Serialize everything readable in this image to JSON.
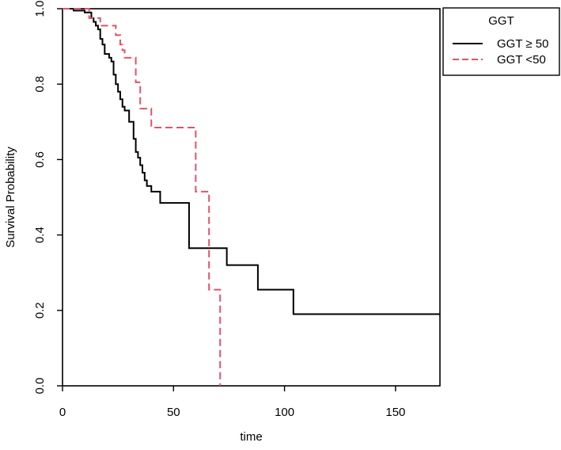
{
  "chart_data": {
    "type": "line",
    "chart_style": "step",
    "xlabel": "time",
    "ylabel": "Survival Probability",
    "xlim": [
      0,
      170
    ],
    "ylim": [
      0,
      1
    ],
    "x_ticks": [
      0,
      50,
      100,
      150
    ],
    "y_ticks": [
      0.0,
      0.2,
      0.4,
      0.6,
      0.8,
      1.0
    ],
    "x_tick_labels": [
      "0",
      "50",
      "100",
      "150"
    ],
    "y_tick_labels": [
      "0.0",
      "0.2",
      "0.4",
      "0.6",
      "0.8",
      "1.0"
    ],
    "grid": false,
    "legend": {
      "title": "GGT",
      "placement": "outside-top-right"
    },
    "series": [
      {
        "name": "GGT ≥ 50",
        "color": "#000000",
        "line_style": "solid",
        "points": [
          [
            0,
            1.0
          ],
          [
            5,
            0.995
          ],
          [
            10,
            0.99
          ],
          [
            13,
            0.975
          ],
          [
            14,
            0.965
          ],
          [
            15,
            0.955
          ],
          [
            16,
            0.945
          ],
          [
            17,
            0.92
          ],
          [
            18,
            0.905
          ],
          [
            19,
            0.88
          ],
          [
            21,
            0.87
          ],
          [
            22,
            0.86
          ],
          [
            23,
            0.825
          ],
          [
            24,
            0.8
          ],
          [
            25,
            0.78
          ],
          [
            26,
            0.76
          ],
          [
            27,
            0.74
          ],
          [
            28,
            0.73
          ],
          [
            30,
            0.7
          ],
          [
            32,
            0.655
          ],
          [
            33,
            0.62
          ],
          [
            34,
            0.605
          ],
          [
            35,
            0.585
          ],
          [
            36,
            0.565
          ],
          [
            37,
            0.545
          ],
          [
            38,
            0.53
          ],
          [
            40,
            0.515
          ],
          [
            44,
            0.485
          ],
          [
            57,
            0.365
          ],
          [
            74,
            0.32
          ],
          [
            88,
            0.255
          ],
          [
            104,
            0.19
          ],
          [
            170,
            0.19
          ]
        ]
      },
      {
        "name": "GGT <50",
        "color": "#df536b",
        "line_style": "dashed",
        "points": [
          [
            0,
            1.0
          ],
          [
            12,
            0.975
          ],
          [
            17,
            0.955
          ],
          [
            24,
            0.93
          ],
          [
            26,
            0.905
          ],
          [
            27,
            0.89
          ],
          [
            28,
            0.87
          ],
          [
            33,
            0.805
          ],
          [
            35,
            0.735
          ],
          [
            40,
            0.685
          ],
          [
            60,
            0.515
          ],
          [
            66,
            0.255
          ],
          [
            71,
            0.0
          ]
        ]
      }
    ]
  }
}
